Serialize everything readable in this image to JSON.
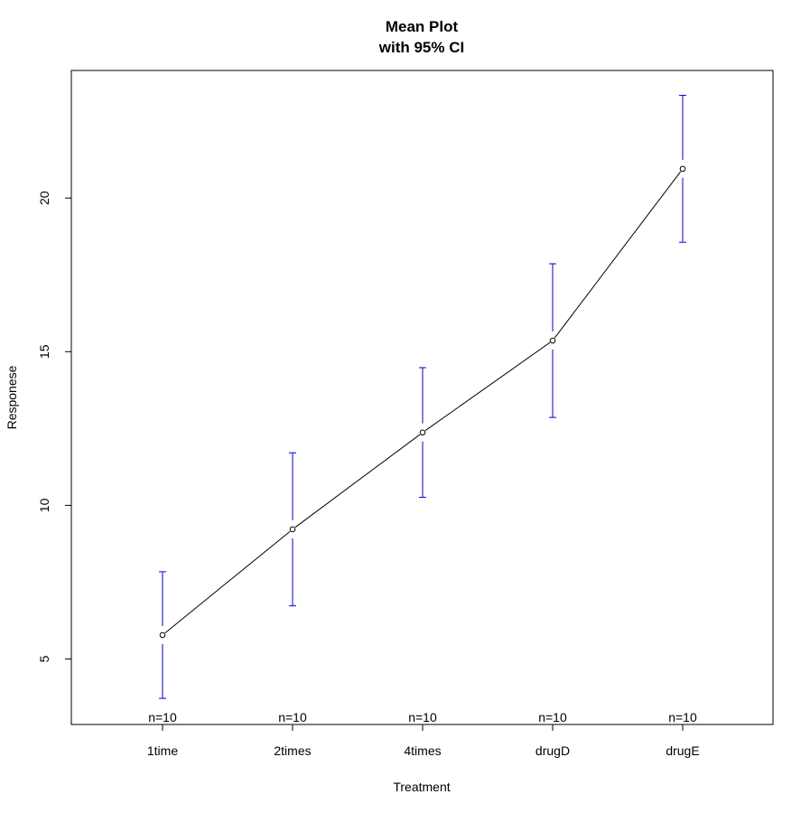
{
  "chart_data": {
    "type": "line",
    "title": "Mean Plot",
    "subtitle": "with 95% CI",
    "xlabel": "Treatment",
    "ylabel": "Responese",
    "categories": [
      "1time",
      "2times",
      "4times",
      "drugD",
      "drugE"
    ],
    "means": [
      5.78,
      9.22,
      12.37,
      15.36,
      20.95
    ],
    "ci_lower": [
      3.72,
      6.73,
      10.26,
      12.86,
      18.56
    ],
    "ci_upper": [
      7.84,
      11.71,
      14.48,
      17.86,
      23.34
    ],
    "n_labels": [
      "n=10",
      "n=10",
      "n=10",
      "n=10",
      "n=10"
    ],
    "yticks": [
      5,
      10,
      15,
      20
    ],
    "ytick_labels": [
      "5",
      "10",
      "15",
      "20"
    ],
    "ylim": [
      2.87,
      24.15
    ],
    "grid": false,
    "colors": {
      "line": "#000000",
      "ci": "#0000cd",
      "point": "#000000"
    }
  }
}
